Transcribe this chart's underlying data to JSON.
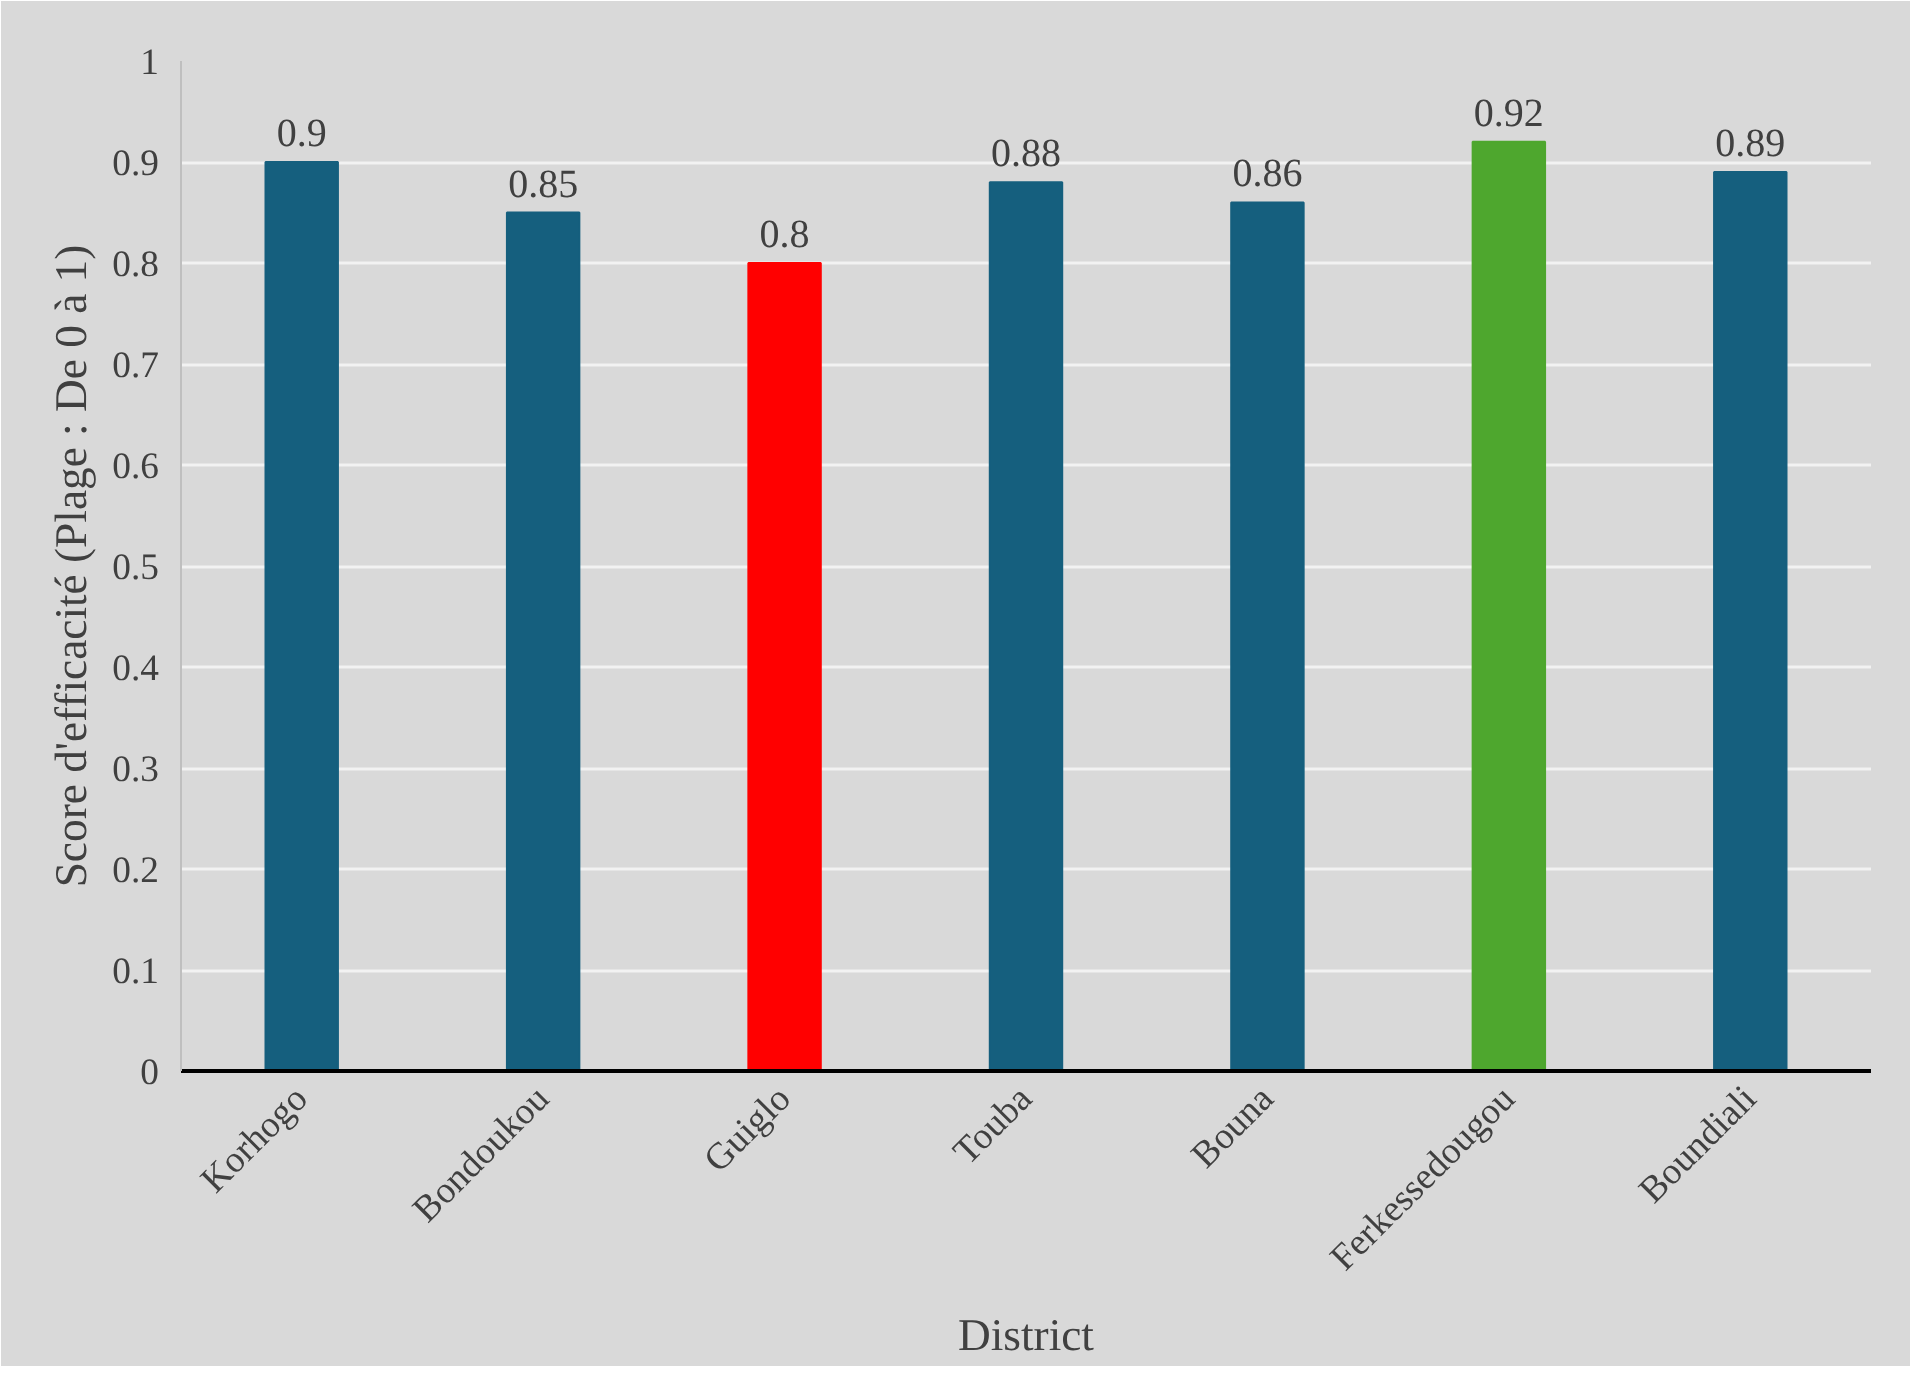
{
  "chart_data": {
    "type": "bar",
    "xlabel": "District",
    "ylabel": "Score d'efficacité (Plage : De 0 à 1)",
    "categories": [
      "Korhogo",
      "Bondoukou",
      "Guiglo",
      "Touba",
      "Bouna",
      "Ferkessedougou",
      "Boundiali"
    ],
    "values": [
      0.9,
      0.85,
      0.8,
      0.88,
      0.86,
      0.92,
      0.89
    ],
    "colors": [
      "#155f7e",
      "#155f7e",
      "#ff0000",
      "#155f7e",
      "#155f7e",
      "#4ea72e",
      "#155f7e"
    ],
    "ylim": [
      0,
      1
    ],
    "yticks": [
      0,
      0.1,
      0.2,
      0.3,
      0.4,
      0.5,
      0.6,
      0.7,
      0.8,
      0.9,
      1
    ],
    "grid": "y",
    "data_labels": true
  }
}
